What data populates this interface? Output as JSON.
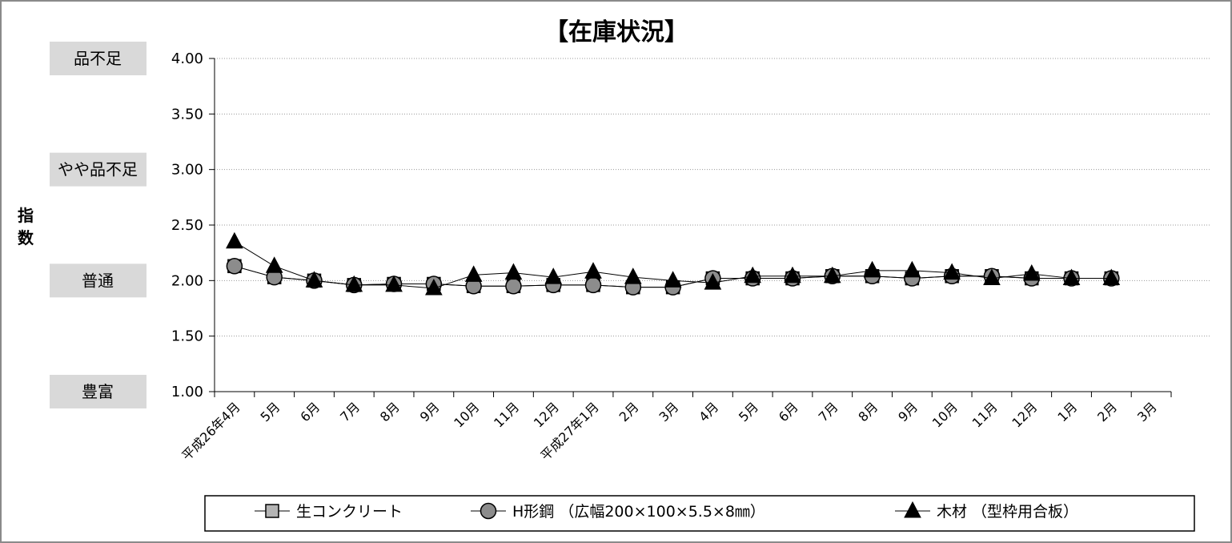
{
  "chart_data": {
    "type": "line",
    "title": "【在庫状況】",
    "ylabel": "指数",
    "ylim": [
      1.0,
      4.0
    ],
    "yticks": [
      "1.00",
      "1.50",
      "2.00",
      "2.50",
      "3.00",
      "3.50",
      "4.00"
    ],
    "grid": "horizontal-dotted",
    "level_labels": [
      {
        "label": "品不足",
        "value": 4.0
      },
      {
        "label": "やや品不足",
        "value": 3.0
      },
      {
        "label": "普通",
        "value": 2.0
      },
      {
        "label": "豊富",
        "value": 1.0
      }
    ],
    "categories": [
      "平成26年4月",
      "5月",
      "6月",
      "7月",
      "8月",
      "9月",
      "10月",
      "11月",
      "12月",
      "平成27年1月",
      "2月",
      "3月",
      "4月",
      "5月",
      "6月",
      "7月",
      "8月",
      "9月",
      "10月",
      "11月",
      "12月",
      "1月",
      "2月",
      "3月"
    ],
    "series": [
      {
        "name": "生コンクリート",
        "marker": "square",
        "color": "#b4b4b4",
        "values": [
          2.13,
          2.03,
          2.0,
          1.96,
          1.97,
          1.97,
          1.95,
          1.95,
          1.96,
          1.96,
          1.94,
          1.94,
          2.02,
          2.02,
          2.02,
          2.04,
          2.04,
          2.02,
          2.04,
          2.04,
          2.02,
          2.02,
          2.02,
          null
        ]
      },
      {
        "name": "H形鋼 （広幅200×100×5.5×8㎜）",
        "marker": "circle",
        "color": "#8c8c8c",
        "values": [
          2.13,
          2.03,
          2.0,
          1.96,
          1.97,
          1.97,
          1.95,
          1.95,
          1.96,
          1.96,
          1.94,
          1.94,
          2.02,
          2.02,
          2.02,
          2.04,
          2.04,
          2.02,
          2.04,
          2.04,
          2.02,
          2.02,
          2.02,
          null
        ]
      },
      {
        "name": "木材 （型枠用合板）",
        "marker": "triangle",
        "color": "#000000",
        "values": [
          2.35,
          2.13,
          2.0,
          1.96,
          1.96,
          1.93,
          2.05,
          2.07,
          2.03,
          2.08,
          2.03,
          2.0,
          1.98,
          2.04,
          2.04,
          2.04,
          2.09,
          2.09,
          2.07,
          2.02,
          2.06,
          2.02,
          2.02,
          null
        ]
      }
    ],
    "legend": "bottom"
  }
}
